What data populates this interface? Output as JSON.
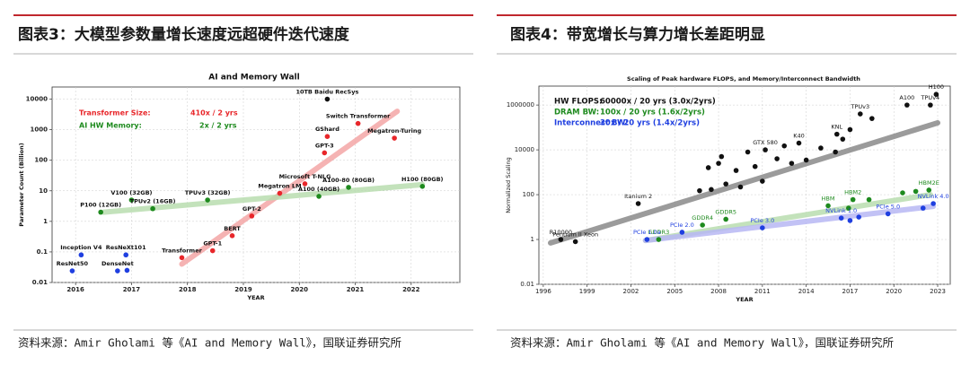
{
  "panels": [
    {
      "heading": "图表3：大模型参数量增长速度远超硬件迭代速度",
      "source": "资料来源：Amir Gholami 等《AI and Memory Wall》，国联证券研究所"
    },
    {
      "heading": "图表4：带宽增长与算力增长差距明显",
      "source": "资料来源：Amir Gholami 等《AI and Memory Wall》，国联证券研究所"
    }
  ],
  "chart_data": [
    {
      "type": "scatter",
      "title": "AI and Memory Wall",
      "xlabel": "YEAR",
      "ylabel": "Parameter Count (Billion)",
      "log_y": true,
      "grid": true,
      "xlim": [
        2015.58,
        2022.87
      ],
      "xticks": [
        2016,
        2017,
        2018,
        2019,
        2020,
        2021,
        2022
      ],
      "ylim": [
        0.01,
        25000
      ],
      "yticks": [
        0.01,
        0.1,
        1,
        10,
        100,
        1000,
        10000
      ],
      "trends": [
        {
          "color": "#f4a6a6",
          "x": [
            2017.9,
            2021.75
          ],
          "values": [
            0.04,
            4000
          ]
        },
        {
          "color": "#b9ddb0",
          "x": [
            2016.5,
            2022.2
          ],
          "values": [
            2,
            16
          ]
        }
      ],
      "series": [
        {
          "color": "#e8262a",
          "x": [
            2017.9,
            2018.45,
            2018.8,
            2019.15,
            2019.65,
            2020.1,
            2020.45,
            2020.5,
            2021.05,
            2021.7
          ],
          "values": [
            0.065,
            0.11,
            0.34,
            1.5,
            8.3,
            17,
            175,
            600,
            1600,
            530
          ],
          "labels": [
            "Transformer",
            "GPT-1",
            "BERT",
            "GPT-2",
            "Megatron LM",
            "Microsoft T-NLG",
            "GPT-3",
            "GShard",
            "Switch Transformer",
            "Megatron-Turing"
          ]
        },
        {
          "color": "#111111",
          "x": [
            2020.5
          ],
          "values": [
            10000
          ],
          "labels": [
            "10TB Baidu RecSys"
          ]
        },
        {
          "color": "#1e8a1e",
          "x": [
            2016.45,
            2017.0,
            2017.38,
            2018.36,
            2020.35,
            2020.88,
            2022.2
          ],
          "values": [
            2,
            5,
            2.6,
            5,
            6.6,
            13,
            14
          ],
          "labels": [
            "P100 (12GB)",
            "V100 (32GB)",
            "TPUv2 (16GB)",
            "TPUv3 (32GB)",
            "A100 (40GB)",
            "A100-80 (80GB)",
            "H100 (80GB)"
          ]
        },
        {
          "color": "#1f3fe0",
          "x": [
            2016.1,
            2015.94,
            2016.9,
            2016.75,
            2016.92
          ],
          "values": [
            0.08,
            0.024,
            0.08,
            0.024,
            0.025
          ],
          "labels": [
            "Inception V4",
            "ResNet50",
            "ResNeXt101",
            "DenseNet",
            null
          ]
        }
      ],
      "notes": [
        {
          "text": "Transformer Size:",
          "color": "#e8262a"
        },
        {
          "text": "410x / 2 yrs",
          "color": "#e8262a"
        },
        {
          "text": "AI HW Memory:",
          "color": "#1e8a1e"
        },
        {
          "text": "2x / 2 yrs",
          "color": "#1e8a1e"
        }
      ]
    },
    {
      "type": "scatter",
      "title": "Scaling of Peak hardware FLOPS, and Memory/Interconnect Bandwidth",
      "xlabel": "YEAR",
      "ylabel": "Normalized Scaling",
      "log_y": true,
      "grid": true,
      "xlim": [
        1995.7,
        2023.86
      ],
      "xticks": [
        1996,
        1999,
        2002,
        2005,
        2008,
        2011,
        2014,
        2017,
        2020,
        2023
      ],
      "ylim": [
        0.01,
        7000000
      ],
      "yticks": [
        0.01,
        1,
        100,
        10000,
        1000000
      ],
      "trends": [
        {
          "color": "#8a8a8a",
          "x": [
            1996.5,
            2023
          ],
          "values": [
            0.7,
            160000
          ]
        },
        {
          "color": "#b9ddb0",
          "x": [
            2003,
            2022.5
          ],
          "values": [
            0.9,
            100
          ]
        },
        {
          "color": "#b8b8f4",
          "x": [
            2003,
            2022.7
          ],
          "values": [
            0.9,
            30
          ]
        }
      ],
      "series": [
        {
          "color": "#111111",
          "x": [
            1997.2,
            1998.2,
            2002.5,
            2006.7,
            2007.3,
            2007.5,
            2008.0,
            2008.2,
            2008.5,
            2009.2,
            2009.5,
            2010.0,
            2010.5,
            2011.0,
            2011.2,
            2012.0,
            2012.5,
            2013.0,
            2013.5,
            2014.0,
            2015.0,
            2016.1,
            2016.0,
            2016.5,
            2017.0,
            2017.7,
            2018.5,
            2020.9,
            2022.9,
            2022.5
          ],
          "values": [
            1,
            0.8,
            40,
            150,
            1600,
            170,
            2500,
            5000,
            300,
            1200,
            220,
            8000,
            1800,
            400,
            10000,
            4000,
            15000,
            2500,
            20000,
            3500,
            12000,
            50000,
            8000,
            30000,
            80000,
            400000,
            250000,
            1000000,
            3000000,
            1000000
          ],
          "labels": [
            "R10000",
            "Pentium II Xeon",
            "Itanium 2",
            null,
            null,
            null,
            null,
            null,
            null,
            null,
            null,
            null,
            null,
            null,
            "GTX 580",
            null,
            null,
            null,
            "K40",
            null,
            null,
            "KNL",
            null,
            null,
            null,
            "TPUv3",
            null,
            "A100",
            "H100",
            "TPUv4"
          ]
        },
        {
          "color": "#1e8a1e",
          "x": [
            2003.9,
            2006.9,
            2008.5,
            2015.5,
            2016.9,
            2017.2,
            2018.3,
            2020.6,
            2021.5,
            2022.4
          ],
          "values": [
            1,
            4.4,
            8,
            32,
            25,
            60,
            60,
            120,
            140,
            160
          ],
          "labels": [
            "GDDR3",
            "GDDR4",
            "GDDR5",
            "HBM",
            null,
            "HBM2",
            null,
            null,
            null,
            "HBM2E"
          ]
        },
        {
          "color": "#1f3fe0",
          "x": [
            2003.1,
            2005.5,
            2011.0,
            2016.4,
            2017.0,
            2017.6,
            2019.6,
            2022.0,
            2022.7
          ],
          "values": [
            1,
            2.1,
            3.3,
            9,
            7,
            10,
            14,
            25,
            40
          ],
          "labels": [
            "PCIe 1.0a",
            "PCIe 2.0",
            "PCIe 3.0",
            "NVLink 1.0",
            null,
            null,
            "PCIe 5.0",
            null,
            "NVLink 4.0"
          ]
        }
      ],
      "notes": [
        {
          "text": "HW FLOPS:",
          "color": "#111111"
        },
        {
          "text": "60000x / 20 yrs (3.0x/2yrs)",
          "color": "#111111"
        },
        {
          "text": "DRAM BW:",
          "color": "#1e8a1e"
        },
        {
          "text": "100x / 20 yrs (1.6x/2yrs)",
          "color": "#1e8a1e"
        },
        {
          "text": "Interconnect BW:",
          "color": "#1f3fe0"
        },
        {
          "text": "30x / 20 yrs (1.4x/2yrs)",
          "color": "#1f3fe0"
        }
      ]
    }
  ]
}
